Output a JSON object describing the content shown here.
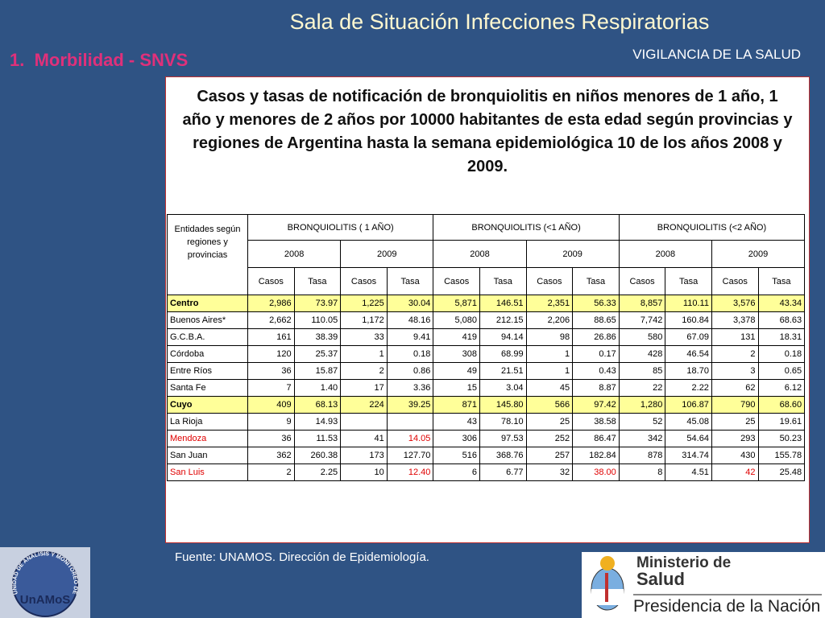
{
  "header": {
    "title": "Sala de Situación Infecciones Respiratorias",
    "subtitle": "VIGILANCIA DE LA SALUD"
  },
  "section": {
    "number": "1.",
    "label": "Morbilidad - SNVS"
  },
  "caption": "Casos y tasas de notificación  de bronquiolitis en niños menores de 1 año, 1 año y menores de 2 años por 10000 habitantes de esta edad según provincias y regiones de Argentina hasta la semana epidemiológica 10 de los años 2008 y 2009.",
  "table": {
    "entity_header": "Entidades según regiones y provincias",
    "groups": [
      "BRONQUIOLITIS ( 1 AÑO)",
      "BRONQUIOLITIS (<1 AÑO)",
      "BRONQUIOLITIS (<2 AÑO)"
    ],
    "years": [
      "2008",
      "2009"
    ],
    "measures": [
      "Casos",
      "Tasa"
    ],
    "rows": [
      [
        "Centro",
        "2,986",
        "73.97",
        "1,225",
        "30.04",
        "5,871",
        "146.51",
        "2,351",
        "56.33",
        "8,857",
        "110.11",
        "3,576",
        "43.34"
      ],
      [
        "Buenos Aires*",
        "2,662",
        "110.05",
        "1,172",
        "48.16",
        "5,080",
        "212.15",
        "2,206",
        "88.65",
        "7,742",
        "160.84",
        "3,378",
        "68.63"
      ],
      [
        "G.C.B.A.",
        "161",
        "38.39",
        "33",
        "9.41",
        "419",
        "94.14",
        "98",
        "26.86",
        "580",
        "67.09",
        "131",
        "18.31"
      ],
      [
        "Córdoba",
        "120",
        "25.37",
        "1",
        "0.18",
        "308",
        "68.99",
        "1",
        "0.17",
        "428",
        "46.54",
        "2",
        "0.18"
      ],
      [
        "Entre Ríos",
        "36",
        "15.87",
        "2",
        "0.86",
        "49",
        "21.51",
        "1",
        "0.43",
        "85",
        "18.70",
        "3",
        "0.65"
      ],
      [
        "Santa Fe",
        "7",
        "1.40",
        "17",
        "3.36",
        "15",
        "3.04",
        "45",
        "8.87",
        "22",
        "2.22",
        "62",
        "6.12"
      ],
      [
        "Cuyo",
        "409",
        "68.13",
        "224",
        "39.25",
        "871",
        "145.80",
        "566",
        "97.42",
        "1,280",
        "106.87",
        "790",
        "68.60"
      ],
      [
        "La Rioja",
        "9",
        "14.93",
        null,
        null,
        "43",
        "78.10",
        "25",
        "38.58",
        "52",
        "45.08",
        "25",
        "19.61"
      ],
      [
        "Mendoza",
        "36",
        "11.53",
        "41",
        "14.05",
        "306",
        "97.53",
        "252",
        "86.47",
        "342",
        "54.64",
        "293",
        "50.23"
      ],
      [
        "San Juan",
        "362",
        "260.38",
        "173",
        "127.70",
        "516",
        "368.76",
        "257",
        "182.84",
        "878",
        "314.74",
        "430",
        "155.78"
      ],
      [
        "San Luis",
        "2",
        "2.25",
        "10",
        "12.40",
        "6",
        "6.77",
        "32",
        "38.00",
        "8",
        "4.51",
        "42",
        "25.48"
      ]
    ]
  },
  "footer": {
    "source": "Fuente: UNAMOS. Dirección de Epidemiología."
  },
  "logos": {
    "unamos_ring": "UNIDAD DE ANALISIS Y MONITOREO DE LA SALUD",
    "unamos": "UnAMoS",
    "ministry_1": "Ministerio de",
    "ministry_2": "Salud",
    "presidency": "Presidencia de la Nación"
  }
}
